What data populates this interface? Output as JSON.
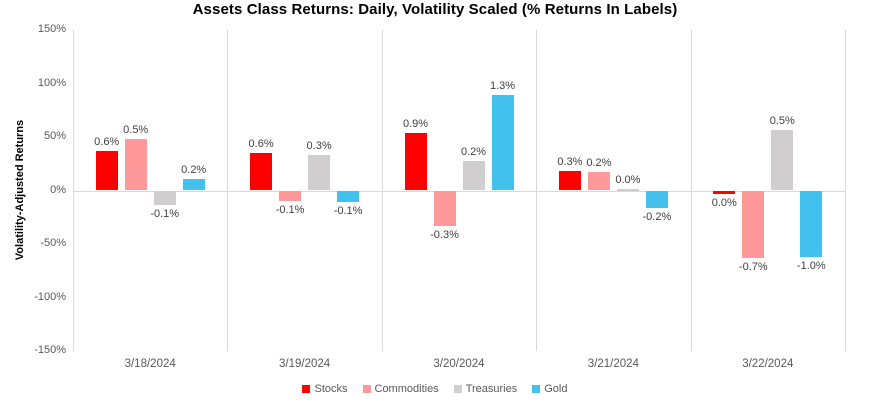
{
  "title": "Assets Class Returns: Daily, Volatility Scaled (% Returns In Labels)",
  "chart_data": {
    "type": "bar",
    "title": "Assets Class Returns: Daily, Volatility Scaled (% Returns In Labels)",
    "xlabel": "",
    "ylabel": "Volatility-Adjusted Returns",
    "ylim": [
      -150,
      150
    ],
    "yticks": [
      {
        "value": 150,
        "label": "150%"
      },
      {
        "value": 100,
        "label": "100%"
      },
      {
        "value": 50,
        "label": "50%"
      },
      {
        "value": 0,
        "label": "0%"
      },
      {
        "value": -50,
        "label": "-50%"
      },
      {
        "value": -100,
        "label": "-100%"
      },
      {
        "value": -150,
        "label": "-150%"
      }
    ],
    "grid": "vertical panel separators only, zero line shown",
    "legend_position": "bottom",
    "categories": [
      "3/18/2024",
      "3/19/2024",
      "3/20/2024",
      "3/21/2024",
      "3/22/2024"
    ],
    "series": [
      {
        "name": "Stocks",
        "color": "#fe0000",
        "return_labels": [
          "0.6%",
          "0.6%",
          "0.9%",
          "0.3%",
          "0.0%"
        ],
        "scaled_bar_values_pct": [
          37,
          35,
          54,
          18,
          -3
        ]
      },
      {
        "name": "Commodities",
        "color": "#ff9999",
        "return_labels": [
          "0.5%",
          "-0.1%",
          "-0.3%",
          "0.2%",
          "-0.7%"
        ],
        "scaled_bar_values_pct": [
          48,
          -10,
          -33,
          17,
          -63
        ]
      },
      {
        "name": "Treasuries",
        "color": "#d0cece",
        "return_labels": [
          "-0.1%",
          "0.3%",
          "0.2%",
          "0.0%",
          "0.5%"
        ],
        "scaled_bar_values_pct": [
          -14,
          33,
          28,
          1,
          57
        ]
      },
      {
        "name": "Gold",
        "color": "#41c1ec",
        "return_labels": [
          "0.2%",
          "-0.1%",
          "1.3%",
          "-0.2%",
          "-1.0%"
        ],
        "scaled_bar_values_pct": [
          11,
          -11,
          89,
          -16,
          -62
        ]
      }
    ]
  },
  "colors": {
    "separator_line": "#d9d9d9",
    "zero_line": "#d9d9d9",
    "tick_text": "#595959",
    "data_label_text": "#404040",
    "title_text": "#000000"
  }
}
